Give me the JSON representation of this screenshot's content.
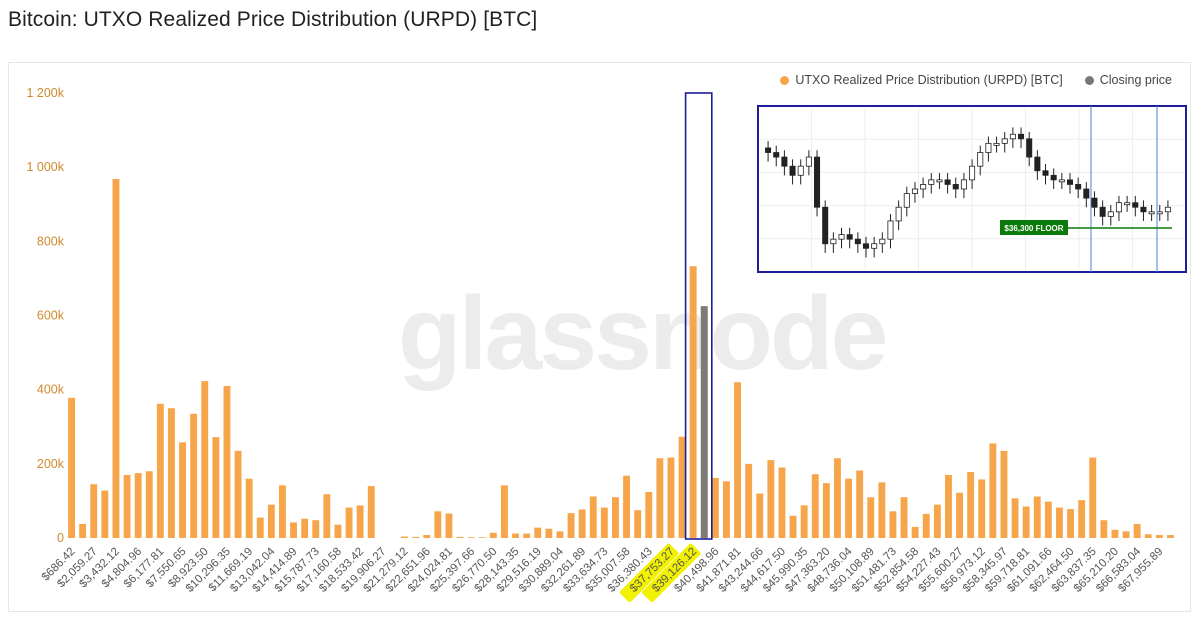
{
  "title": "Bitcoin: UTXO Realized Price Distribution (URPD) [BTC]",
  "watermark": "glassnode",
  "colors": {
    "bar": "#f7a54a",
    "highlight": "#f1f100",
    "closing": "#7b7b7b",
    "box": "#1e1e9a",
    "floor": "#0a7a0a"
  },
  "legend": [
    {
      "label": "UTXO Realized Price Distribution (URPD) [BTC]",
      "color": "#f7a54a"
    },
    {
      "label": "Closing price",
      "color": "#777777"
    }
  ],
  "inset": {
    "floor_label": "$36,300 FLOOR",
    "closes": [
      104,
      103,
      101,
      99,
      101,
      103,
      92,
      84,
      85,
      86,
      85,
      84,
      83,
      84,
      85,
      89,
      92,
      95,
      96,
      97,
      98,
      98,
      97,
      96,
      98,
      101,
      104,
      106,
      106,
      107,
      108,
      107,
      103,
      100,
      99,
      98,
      98,
      97,
      96,
      94,
      92,
      90,
      91,
      93,
      93,
      92,
      91,
      91,
      91,
      92
    ]
  },
  "chart_data": {
    "type": "bar",
    "ylim": [
      0,
      1200000
    ],
    "y_ticks": [
      0,
      200000,
      400000,
      600000,
      800000,
      1000000,
      1200000
    ],
    "y_tick_labels": [
      "0",
      "200k",
      "400k",
      "600k",
      "800k",
      "1 000k",
      "1 200k"
    ],
    "x_tick_labels": [
      "$686.42",
      "$2,059.27",
      "$3,432.12",
      "$4,804.96",
      "$6,177.81",
      "$7,550.65",
      "$8,923.50",
      "$10,296.35",
      "$11,669.19",
      "$13,042.04",
      "$14,414.89",
      "$15,787.73",
      "$17,160.58",
      "$18,533.42",
      "$19,906.27",
      "$21,279.12",
      "$22,651.96",
      "$24,024.81",
      "$25,397.66",
      "$26,770.50",
      "$28,143.35",
      "$29,516.19",
      "$30,889.04",
      "$32,261.89",
      "$33,634.73",
      "$35,007.58",
      "$36,380.43",
      "$37,753.27",
      "$39,126.12",
      "$40,498.96",
      "$41,871.81",
      "$43,244.66",
      "$44,617.50",
      "$45,990.35",
      "$47,363.20",
      "$48,736.04",
      "$50,108.89",
      "$51,481.73",
      "$52,854.58",
      "$54,227.43",
      "$55,600.27",
      "$56,973.12",
      "$58,345.97",
      "$59,718.81",
      "$61,091.66",
      "$62,464.50",
      "$63,837.35",
      "$65,210.20",
      "$66,583.04",
      "$67,955.89"
    ],
    "highlighted_labels": [
      "$37,753.27",
      "$39,126.12"
    ],
    "closing_price_bin": "$39,126.12",
    "series": [
      {
        "name": "UTXO Realized Price Distribution (URPD) [BTC]",
        "values": [
          378000,
          38000,
          145000,
          128000,
          968000,
          170000,
          175000,
          180000,
          362000,
          350000,
          258000,
          335000,
          423000,
          272000,
          410000,
          235000,
          160000,
          55000,
          90000,
          142000,
          42000,
          52000,
          48000,
          118000,
          36000,
          82000,
          88000,
          140000,
          0,
          0,
          4000,
          3000,
          8000,
          72000,
          66000,
          3000,
          2000,
          2000,
          14000,
          142000,
          12000,
          12000,
          28000,
          25000,
          18000,
          67000,
          77000,
          112000,
          82000,
          110000,
          168000,
          75000,
          124000,
          215000,
          217000,
          273000,
          733000,
          625000,
          162000,
          153000,
          420000,
          200000,
          120000,
          210000,
          190000,
          60000,
          88000,
          172000,
          148000,
          215000,
          160000,
          182000,
          110000,
          150000,
          72000,
          110000,
          30000,
          65000,
          90000,
          170000,
          122000,
          178000,
          158000,
          255000,
          235000,
          107000,
          85000,
          112000,
          98000,
          82000,
          78000,
          102000,
          217000,
          48000,
          22000,
          18000,
          38000,
          10000,
          8000,
          8000
        ]
      },
      {
        "name": "Closing price",
        "values_note": "single bar",
        "value": 625000
      }
    ]
  }
}
